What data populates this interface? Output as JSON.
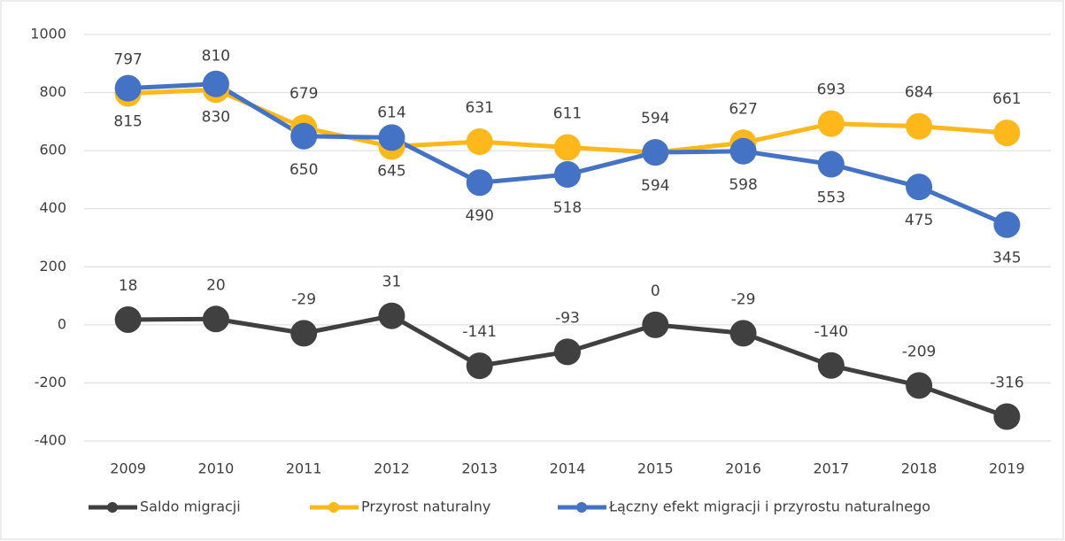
{
  "chart_data": {
    "type": "line",
    "categories": [
      "2009",
      "2010",
      "2011",
      "2012",
      "2013",
      "2014",
      "2015",
      "2016",
      "2017",
      "2018",
      "2019"
    ],
    "series": [
      {
        "name": "Saldo migracji",
        "color": "#404040",
        "values": [
          18,
          20,
          -29,
          31,
          -141,
          -93,
          0,
          -29,
          -140,
          -209,
          -316
        ]
      },
      {
        "name": "Przyrost naturalny",
        "color": "#FFB81C",
        "values": [
          797,
          810,
          679,
          614,
          631,
          611,
          594,
          627,
          693,
          684,
          661
        ]
      },
      {
        "name": "Łączny efekt migracji i przyrostu naturalnego",
        "color": "#4472C4",
        "values": [
          815,
          830,
          650,
          645,
          490,
          518,
          594,
          598,
          553,
          475,
          345
        ]
      }
    ],
    "ylim": [
      -400,
      1000
    ],
    "yticks": [
      -400,
      -200,
      0,
      200,
      400,
      600,
      800,
      1000
    ],
    "grid": true,
    "legend": "bottom"
  }
}
